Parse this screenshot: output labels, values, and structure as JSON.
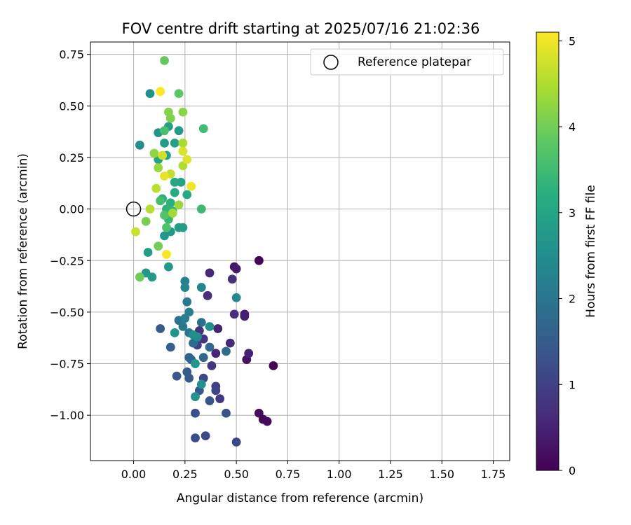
{
  "chart_data": {
    "type": "scatter",
    "title": "FOV centre drift starting at 2025/07/16 21:02:36",
    "xlabel": "Angular distance from reference (arcmin)",
    "ylabel": "Rotation from reference (arcmin)",
    "xlim": [
      -0.21,
      1.83
    ],
    "ylim": [
      -1.22,
      0.81
    ],
    "xticks": [
      "0.00",
      "0.25",
      "0.50",
      "0.75",
      "1.00",
      "1.25",
      "1.50",
      "1.75"
    ],
    "xtick_values": [
      0,
      0.25,
      0.5,
      0.75,
      1.0,
      1.25,
      1.5,
      1.75
    ],
    "yticks": [
      "−1.00",
      "−0.75",
      "−0.50",
      "−0.25",
      "0.00",
      "0.25",
      "0.50",
      "0.75"
    ],
    "ytick_values": [
      -1.0,
      -0.75,
      -0.5,
      -0.25,
      0,
      0.25,
      0.5,
      0.75
    ],
    "grid": true,
    "legend": {
      "position": "top-right",
      "entries": [
        "Reference platepar"
      ]
    },
    "reference_point": {
      "x": 0.0,
      "y": 0.0
    },
    "colorbar": {
      "label": "Hours from first FF file",
      "range": [
        0,
        5.1
      ],
      "ticks": [
        "0",
        "1",
        "2",
        "3",
        "4",
        "5"
      ],
      "tick_values": [
        0,
        1,
        2,
        3,
        4,
        5
      ],
      "colormap": "viridis"
    },
    "points": [
      {
        "x": 0.61,
        "y": -0.25,
        "c": 0.05
      },
      {
        "x": 0.68,
        "y": -0.76,
        "c": 0.05
      },
      {
        "x": 0.63,
        "y": -1.02,
        "c": 0.1
      },
      {
        "x": 0.65,
        "y": -1.03,
        "c": 0.15
      },
      {
        "x": 0.61,
        "y": -0.99,
        "c": 0.2
      },
      {
        "x": 0.55,
        "y": -0.73,
        "c": 0.25
      },
      {
        "x": 0.49,
        "y": -0.28,
        "c": 0.3
      },
      {
        "x": 0.5,
        "y": -0.29,
        "c": 0.35
      },
      {
        "x": 0.54,
        "y": -0.51,
        "c": 0.4
      },
      {
        "x": 0.54,
        "y": -0.52,
        "c": 0.45
      },
      {
        "x": 0.56,
        "y": -0.7,
        "c": 0.5
      },
      {
        "x": 0.41,
        "y": -0.58,
        "c": 0.5
      },
      {
        "x": 0.4,
        "y": -0.7,
        "c": 0.55
      },
      {
        "x": 0.47,
        "y": -0.65,
        "c": 0.6
      },
      {
        "x": 0.37,
        "y": -0.31,
        "c": 0.6
      },
      {
        "x": 0.36,
        "y": -0.42,
        "c": 0.65
      },
      {
        "x": 0.49,
        "y": -0.51,
        "c": 0.7
      },
      {
        "x": 0.48,
        "y": -0.34,
        "c": 0.7
      },
      {
        "x": 0.32,
        "y": -0.59,
        "c": 0.75
      },
      {
        "x": 0.34,
        "y": -0.63,
        "c": 0.8
      },
      {
        "x": 0.38,
        "y": -0.76,
        "c": 0.85
      },
      {
        "x": 0.42,
        "y": -0.92,
        "c": 0.9
      },
      {
        "x": 0.4,
        "y": -0.86,
        "c": 0.95
      },
      {
        "x": 0.31,
        "y": -0.66,
        "c": 1.0
      },
      {
        "x": 0.4,
        "y": -0.88,
        "c": 1.05
      },
      {
        "x": 0.34,
        "y": -0.82,
        "c": 1.1
      },
      {
        "x": 0.5,
        "y": -1.13,
        "c": 1.1
      },
      {
        "x": 0.35,
        "y": -1.1,
        "c": 1.15
      },
      {
        "x": 0.3,
        "y": -1.11,
        "c": 1.2
      },
      {
        "x": 0.3,
        "y": -0.99,
        "c": 1.25
      },
      {
        "x": 0.45,
        "y": -0.99,
        "c": 1.3
      },
      {
        "x": 0.37,
        "y": -0.93,
        "c": 1.35
      },
      {
        "x": 0.32,
        "y": -0.88,
        "c": 1.4
      },
      {
        "x": 0.21,
        "y": -0.81,
        "c": 1.4
      },
      {
        "x": 0.27,
        "y": -0.82,
        "c": 1.45
      },
      {
        "x": 0.26,
        "y": -0.79,
        "c": 1.5
      },
      {
        "x": 0.13,
        "y": -0.58,
        "c": 1.5
      },
      {
        "x": 0.18,
        "y": -0.67,
        "c": 1.55
      },
      {
        "x": 0.28,
        "y": -0.73,
        "c": 1.6
      },
      {
        "x": 0.27,
        "y": -0.72,
        "c": 1.65
      },
      {
        "x": 0.34,
        "y": -0.72,
        "c": 1.7
      },
      {
        "x": 0.37,
        "y": -0.67,
        "c": 1.75
      },
      {
        "x": 0.45,
        "y": -0.69,
        "c": 1.8
      },
      {
        "x": 0.29,
        "y": -0.65,
        "c": 1.85
      },
      {
        "x": 0.33,
        "y": -0.55,
        "c": 1.9
      },
      {
        "x": 0.22,
        "y": -0.54,
        "c": 1.95
      },
      {
        "x": 0.27,
        "y": -0.6,
        "c": 2.0
      },
      {
        "x": 0.24,
        "y": -0.57,
        "c": 2.05
      },
      {
        "x": 0.26,
        "y": -0.45,
        "c": 2.1
      },
      {
        "x": 0.25,
        "y": -0.53,
        "c": 2.15
      },
      {
        "x": 0.27,
        "y": -0.5,
        "c": 2.2
      },
      {
        "x": 0.25,
        "y": -0.35,
        "c": 2.25
      },
      {
        "x": 0.25,
        "y": -0.38,
        "c": 2.3
      },
      {
        "x": 0.33,
        "y": -0.38,
        "c": 2.35
      },
      {
        "x": 0.5,
        "y": -0.43,
        "c": 2.4
      },
      {
        "x": 0.31,
        "y": -0.62,
        "c": 2.45
      },
      {
        "x": 0.37,
        "y": -0.57,
        "c": 2.5
      },
      {
        "x": 0.29,
        "y": -0.61,
        "c": 2.55
      },
      {
        "x": 0.2,
        "y": -0.6,
        "c": 2.6
      },
      {
        "x": 0.33,
        "y": -0.85,
        "c": 2.6
      },
      {
        "x": 0.3,
        "y": -0.91,
        "c": 2.65
      },
      {
        "x": 0.3,
        "y": -0.75,
        "c": 2.7
      },
      {
        "x": 0.06,
        "y": -0.31,
        "c": 2.7
      },
      {
        "x": 0.17,
        "y": -0.28,
        "c": 2.75
      },
      {
        "x": 0.09,
        "y": -0.33,
        "c": 2.8
      },
      {
        "x": 0.07,
        "y": -0.21,
        "c": 2.85
      },
      {
        "x": 0.03,
        "y": 0.31,
        "c": 2.5
      },
      {
        "x": 0.08,
        "y": 0.56,
        "c": 2.6
      },
      {
        "x": 0.12,
        "y": 0.37,
        "c": 2.65
      },
      {
        "x": 0.15,
        "y": -0.13,
        "c": 2.7
      },
      {
        "x": 0.18,
        "y": -0.11,
        "c": 2.75
      },
      {
        "x": 0.22,
        "y": -0.09,
        "c": 2.8
      },
      {
        "x": 0.24,
        "y": -0.09,
        "c": 2.85
      },
      {
        "x": 0.22,
        "y": 0.38,
        "c": 2.75
      },
      {
        "x": 0.17,
        "y": 0.4,
        "c": 2.85
      },
      {
        "x": 0.15,
        "y": 0.32,
        "c": 2.8
      },
      {
        "x": 0.2,
        "y": 0.32,
        "c": 2.9
      },
      {
        "x": 0.16,
        "y": 0.26,
        "c": 2.95
      },
      {
        "x": 0.12,
        "y": 0.24,
        "c": 3.0
      },
      {
        "x": 0.2,
        "y": 0.13,
        "c": 3.05
      },
      {
        "x": 0.23,
        "y": 0.13,
        "c": 3.0
      },
      {
        "x": 0.26,
        "y": 0.07,
        "c": 3.1
      },
      {
        "x": 0.2,
        "y": 0.08,
        "c": 3.15
      },
      {
        "x": 0.14,
        "y": 0.05,
        "c": 3.2
      },
      {
        "x": 0.18,
        "y": 0.03,
        "c": 3.25
      },
      {
        "x": 0.16,
        "y": 0.0,
        "c": 3.3
      },
      {
        "x": 0.19,
        "y": -0.01,
        "c": 3.35
      },
      {
        "x": 0.17,
        "y": -0.05,
        "c": 3.4
      },
      {
        "x": 0.33,
        "y": 0.0,
        "c": 3.45
      },
      {
        "x": 0.34,
        "y": 0.39,
        "c": 3.5
      },
      {
        "x": 0.13,
        "y": 0.04,
        "c": 3.55
      },
      {
        "x": 0.15,
        "y": 0.38,
        "c": 3.6
      },
      {
        "x": 0.16,
        "y": -0.09,
        "c": 3.65
      },
      {
        "x": 0.15,
        "y": -0.03,
        "c": 3.7
      },
      {
        "x": 0.22,
        "y": 0.56,
        "c": 3.8
      },
      {
        "x": 0.15,
        "y": 0.72,
        "c": 3.9
      },
      {
        "x": 0.03,
        "y": -0.33,
        "c": 3.95
      },
      {
        "x": 0.12,
        "y": -0.18,
        "c": 4.0
      },
      {
        "x": 0.06,
        "y": -0.06,
        "c": 4.05
      },
      {
        "x": 0.18,
        "y": 0.44,
        "c": 4.1
      },
      {
        "x": 0.17,
        "y": 0.47,
        "c": 4.15
      },
      {
        "x": 0.24,
        "y": 0.47,
        "c": 4.2
      },
      {
        "x": 0.1,
        "y": 0.27,
        "c": 4.25
      },
      {
        "x": 0.12,
        "y": 0.2,
        "c": 4.3
      },
      {
        "x": 0.22,
        "y": 0.02,
        "c": 4.35
      },
      {
        "x": 0.19,
        "y": -0.02,
        "c": 4.4
      },
      {
        "x": 0.24,
        "y": 0.32,
        "c": 4.45
      },
      {
        "x": 0.24,
        "y": 0.21,
        "c": 4.5
      },
      {
        "x": 0.08,
        "y": 0.0,
        "c": 4.55
      },
      {
        "x": 0.11,
        "y": 0.1,
        "c": 4.6
      },
      {
        "x": 0.18,
        "y": 0.17,
        "c": 4.65
      },
      {
        "x": 0.01,
        "y": -0.11,
        "c": 4.7
      },
      {
        "x": 0.14,
        "y": 0.26,
        "c": 4.75
      },
      {
        "x": 0.24,
        "y": 0.28,
        "c": 4.8
      },
      {
        "x": 0.26,
        "y": 0.24,
        "c": 4.85
      },
      {
        "x": 0.15,
        "y": 0.16,
        "c": 4.95
      },
      {
        "x": 0.28,
        "y": 0.11,
        "c": 5.0
      },
      {
        "x": 0.16,
        "y": -0.22,
        "c": 5.05
      },
      {
        "x": 0.13,
        "y": 0.57,
        "c": 5.1
      }
    ]
  }
}
